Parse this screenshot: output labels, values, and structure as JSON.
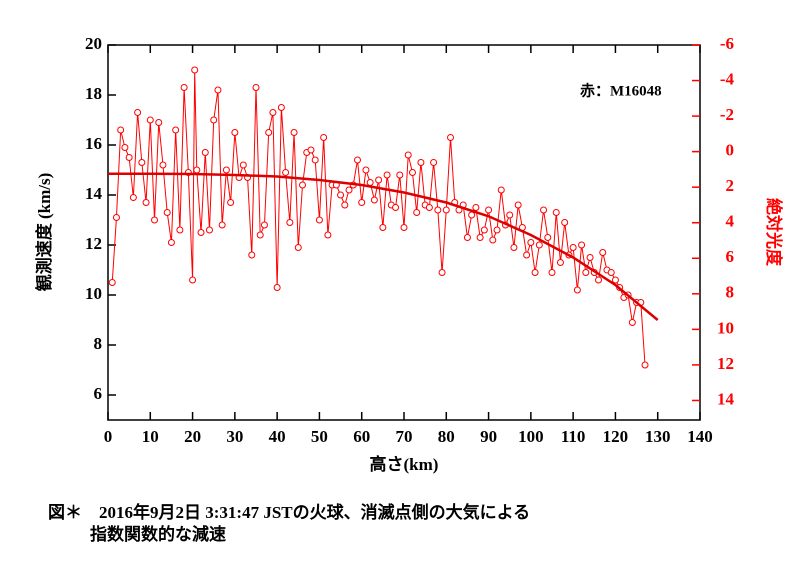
{
  "chart_data": {
    "type": "line",
    "xlabel": "高さ(km)",
    "ylabel": "観測速度 (km/s)",
    "y2label": "絶対光度",
    "annotation": "赤：M16048",
    "caption": [
      "図＊　2016年9月2日 3:31:47 JSTの火球、消滅点側の大気による",
      "指数関数的な減速"
    ],
    "xlim": [
      0,
      140
    ],
    "xticks": [
      0,
      10,
      20,
      30,
      40,
      50,
      60,
      70,
      80,
      90,
      100,
      110,
      120,
      130,
      140
    ],
    "ylim": [
      5,
      20
    ],
    "yticks": [
      6,
      8,
      10,
      12,
      14,
      16,
      18,
      20
    ],
    "y2lim": [
      15.1,
      -6
    ],
    "y2ticks": [
      -6,
      -4,
      -2,
      0,
      2,
      4,
      6,
      8,
      10,
      12,
      14
    ],
    "series": [
      {
        "color": "#ff0000",
        "marker": "circle",
        "x": [
          1,
          2,
          3,
          4,
          5,
          6,
          7,
          8,
          9,
          10,
          11,
          12,
          13,
          14,
          15,
          16,
          17,
          18,
          19,
          20,
          20.5,
          21,
          22,
          23,
          24,
          25,
          26,
          27,
          28,
          29,
          30,
          31,
          32,
          33,
          34,
          35,
          36,
          37,
          38,
          39,
          40,
          41,
          42,
          43,
          44,
          45,
          46,
          47,
          48,
          49,
          50,
          51,
          52,
          53,
          54,
          55,
          56,
          57,
          58,
          59,
          60,
          61,
          62,
          63,
          64,
          65,
          66,
          67,
          68,
          69,
          70,
          71,
          72,
          73,
          74,
          75,
          76,
          77,
          78,
          79,
          80,
          81,
          82,
          83,
          84,
          85,
          86,
          87,
          88,
          89,
          90,
          91,
          92,
          93,
          94,
          95,
          96,
          97,
          98,
          99,
          100,
          101,
          102,
          103,
          104,
          105,
          106,
          107,
          108,
          109,
          110,
          111,
          112,
          113,
          114,
          115,
          116,
          117,
          118,
          119,
          120,
          121,
          122,
          123,
          124,
          125,
          126,
          127
        ],
        "values": [
          10.5,
          13.1,
          16.6,
          15.9,
          15.5,
          13.9,
          17.3,
          15.3,
          13.7,
          17.0,
          13.0,
          16.9,
          15.2,
          13.3,
          12.1,
          16.6,
          12.6,
          18.3,
          14.9,
          10.6,
          19.0,
          15.0,
          12.5,
          15.7,
          12.6,
          17.0,
          18.2,
          12.8,
          15.0,
          13.7,
          16.5,
          14.7,
          15.2,
          14.7,
          11.6,
          18.3,
          12.4,
          12.8,
          16.5,
          17.3,
          10.3,
          17.5,
          14.9,
          12.9,
          16.5,
          11.9,
          14.4,
          15.7,
          15.8,
          15.4,
          13.0,
          16.3,
          12.4,
          14.4,
          14.4,
          14.0,
          13.6,
          14.2,
          14.4,
          15.4,
          13.7,
          15.0,
          14.5,
          13.8,
          14.6,
          12.7,
          14.8,
          13.6,
          13.5,
          14.8,
          12.7,
          15.6,
          14.9,
          13.3,
          15.3,
          13.6,
          13.5,
          15.3,
          13.4,
          10.9,
          13.4,
          16.3,
          13.7,
          13.4,
          13.6,
          12.3,
          13.2,
          13.5,
          12.3,
          12.6,
          13.4,
          12.2,
          12.6,
          14.2,
          12.8,
          13.2,
          11.9,
          13.6,
          12.7,
          11.6,
          12.1,
          10.9,
          12.0,
          13.4,
          12.3,
          10.9,
          13.3,
          11.3,
          12.9,
          11.6,
          11.9,
          10.2,
          12.0,
          10.9,
          11.5,
          10.9,
          10.6,
          11.7,
          11.0,
          10.9,
          10.6,
          10.3,
          9.9,
          10.0,
          8.9,
          9.7,
          9.7,
          7.2
        ]
      },
      {
        "color": "#dd0000",
        "marker": "none",
        "x": [
          0,
          10,
          20,
          30,
          40,
          50,
          60,
          70,
          80,
          90,
          100,
          110,
          120,
          130
        ],
        "values": [
          14.85,
          14.85,
          14.84,
          14.8,
          14.74,
          14.6,
          14.4,
          14.1,
          13.7,
          13.15,
          12.4,
          11.5,
          10.4,
          9.0
        ]
      }
    ]
  }
}
